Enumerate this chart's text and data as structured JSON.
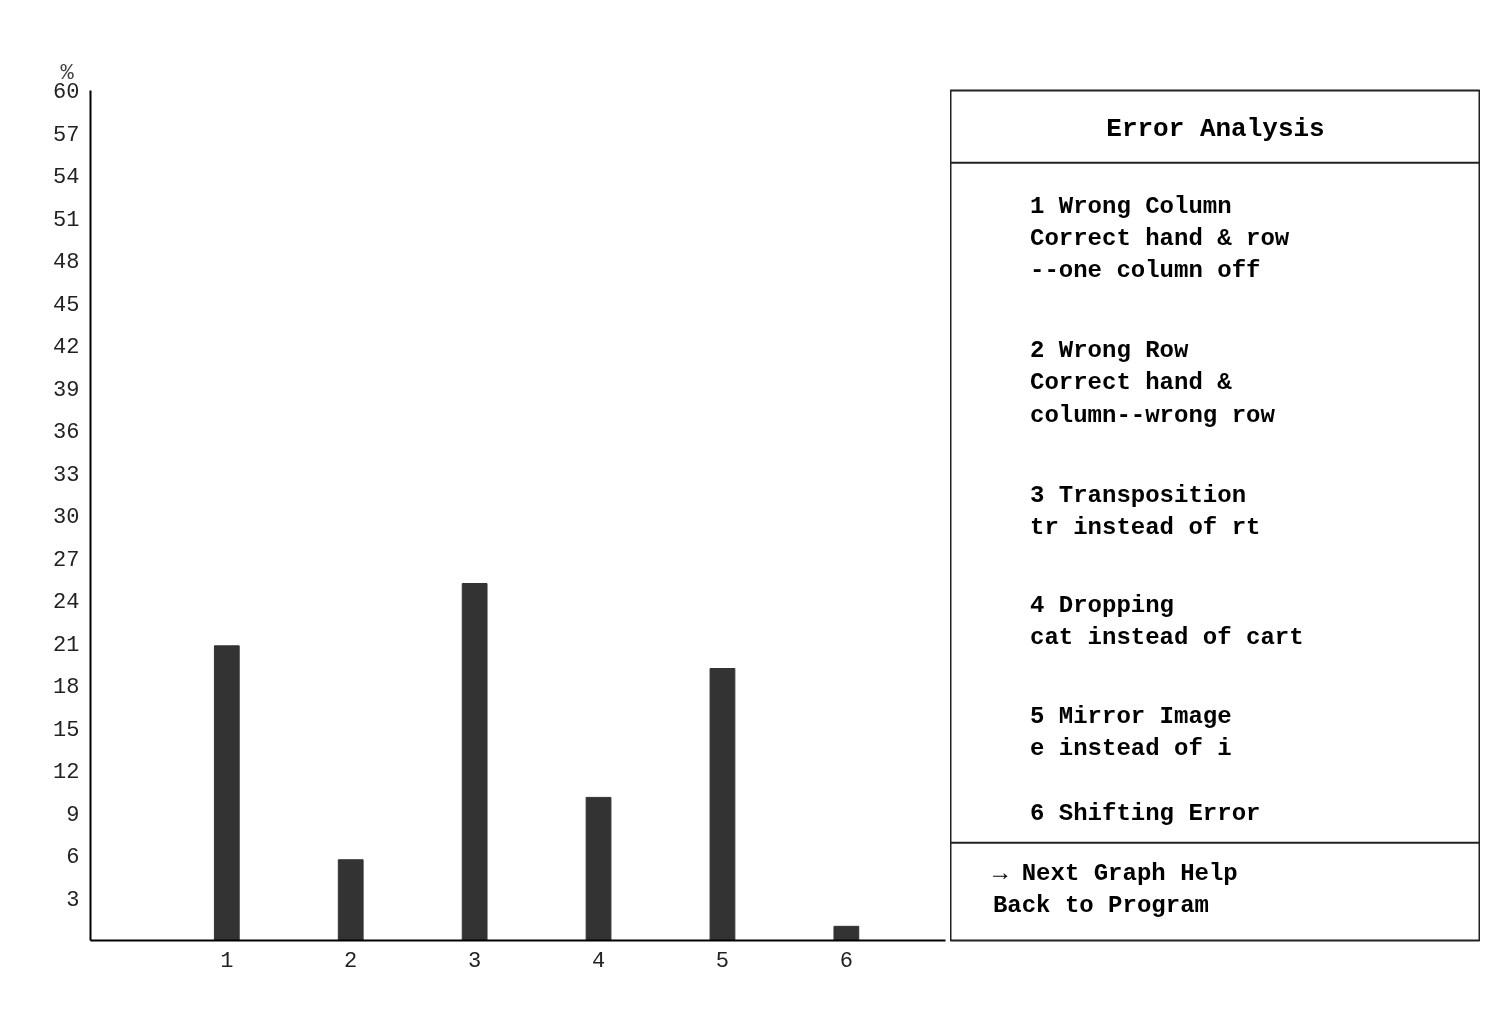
{
  "chart_data": {
    "type": "bar",
    "title": "Error Analysis",
    "ylabel": "%",
    "categories": [
      "1",
      "2",
      "3",
      "4",
      "5",
      "6"
    ],
    "values": [
      20.8,
      5.7,
      25.2,
      10.1,
      19.2,
      1.0
    ],
    "color": "#333333",
    "ylim": [
      0,
      60
    ],
    "yticks": [
      3,
      6,
      9,
      12,
      15,
      18,
      21,
      24,
      27,
      30,
      33,
      36,
      39,
      42,
      45,
      48,
      51,
      54,
      57,
      60
    ],
    "grid": false,
    "annotations": [
      "1 Wrong Column\n  Correct hand & row\n  --one column off",
      "2 Wrong Row\n  Correct hand &\n  column--wrong row",
      "3 Transposition\n  tr instead of rt",
      "4 Dropping\n  cat instead of cart",
      "5 Mirror Image\n  e instead of i",
      "6 Shifting Error",
      "→ Next Graph   Help\n  Back to Program"
    ]
  }
}
